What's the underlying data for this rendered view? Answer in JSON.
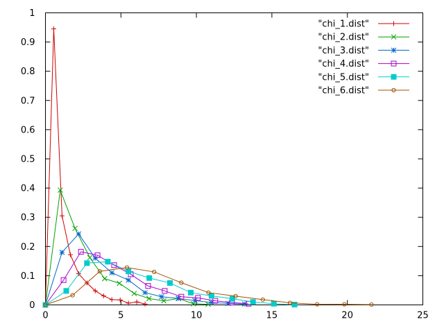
{
  "chart_data": {
    "type": "line",
    "xlim": [
      0,
      25
    ],
    "ylim": [
      0,
      1
    ],
    "xticks": [
      "0",
      "5",
      "10",
      "15",
      "20",
      "25"
    ],
    "yticks": [
      "0",
      "0.1",
      "0.2",
      "0.3",
      "0.4",
      "0.5",
      "0.6",
      "0.7",
      "0.8",
      "0.9",
      "1"
    ],
    "grid": false,
    "legend_position": "top-right",
    "series": [
      {
        "name": "\"chi_1.dist\"",
        "color": "#cc0000",
        "marker": "plus",
        "x": [
          0,
          0.55,
          1.1,
          1.65,
          2.2,
          2.75,
          3.3,
          3.85,
          4.4,
          4.95,
          5.5,
          6.05,
          6.6
        ],
        "y": [
          0,
          0.945,
          0.305,
          0.172,
          0.107,
          0.075,
          0.048,
          0.031,
          0.018,
          0.017,
          0.006,
          0.01,
          0.003
        ]
      },
      {
        "name": "\"chi_2.dist\"",
        "color": "#00a000",
        "marker": "cross",
        "x": [
          0,
          0.98,
          1.96,
          2.94,
          3.92,
          4.9,
          5.88,
          6.86,
          7.84,
          8.82,
          9.8,
          10.78
        ],
        "y": [
          0,
          0.393,
          0.262,
          0.162,
          0.09,
          0.074,
          0.039,
          0.022,
          0.014,
          0.022,
          0.004,
          0.002
        ]
      },
      {
        "name": "\"chi_3.dist\"",
        "color": "#0066cc",
        "marker": "star",
        "x": [
          0,
          1.1,
          2.2,
          3.3,
          4.4,
          5.5,
          6.6,
          7.7,
          8.8,
          9.9,
          11,
          12.1,
          13.2
        ],
        "y": [
          0,
          0.18,
          0.243,
          0.16,
          0.11,
          0.085,
          0.042,
          0.028,
          0.022,
          0.015,
          0.008,
          0.005,
          0.003
        ]
      },
      {
        "name": "\"chi_4.dist\"",
        "color": "#aa00cc",
        "marker": "open-square",
        "x": [
          0,
          1.2,
          2.35,
          3.45,
          4.55,
          5.65,
          6.8,
          7.9,
          9.0,
          10.1,
          11.25,
          12.35,
          13.45
        ],
        "y": [
          0,
          0.085,
          0.182,
          0.17,
          0.136,
          0.105,
          0.065,
          0.048,
          0.028,
          0.024,
          0.014,
          0.008,
          0.004
        ]
      },
      {
        "name": "\"chi_5.dist\"",
        "color": "#00cccc",
        "marker": "filled-square",
        "x": [
          0,
          1.38,
          2.75,
          4.13,
          5.5,
          6.88,
          8.25,
          9.63,
          11,
          12.38,
          13.75,
          15.13,
          16.5
        ],
        "y": [
          0,
          0.048,
          0.143,
          0.148,
          0.115,
          0.092,
          0.075,
          0.042,
          0.031,
          0.021,
          0.01,
          0.004,
          0.001
        ]
      },
      {
        "name": "\"chi_6.dist\"",
        "color": "#a05000",
        "marker": "open-circle",
        "x": [
          0,
          1.8,
          3.6,
          5.4,
          7.2,
          9.0,
          10.8,
          12.6,
          14.4,
          16.2,
          18.0,
          19.8,
          21.6
        ],
        "y": [
          0,
          0.033,
          0.115,
          0.128,
          0.113,
          0.076,
          0.042,
          0.03,
          0.018,
          0.007,
          0.002,
          0.002,
          0.001
        ]
      }
    ]
  }
}
